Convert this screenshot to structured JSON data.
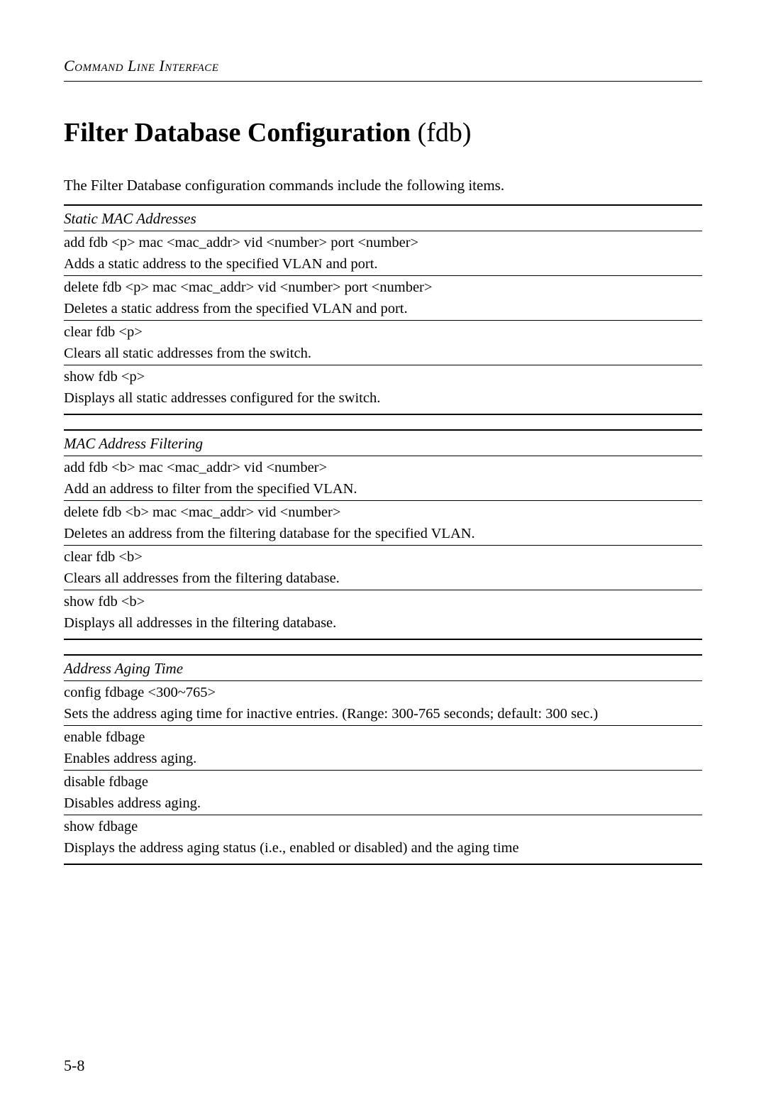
{
  "header": {
    "section_label": "Command Line Interface"
  },
  "title": {
    "bold_part": "Filter Database Configuration",
    "light_part": " (fdb)"
  },
  "intro": "The Filter Database configuration commands include the following items.",
  "sections": [
    {
      "label": "Static MAC Addresses",
      "rows": [
        {
          "cmd": "add fdb <p> mac <mac_addr> vid <number> port <number>",
          "desc": "Adds a static address to the specified VLAN and port."
        },
        {
          "cmd": "delete fdb <p> mac <mac_addr> vid <number> port <number>",
          "desc": "Deletes a static address from the specified VLAN and port."
        },
        {
          "cmd": "clear fdb <p>",
          "desc": "Clears all static addresses from the switch."
        },
        {
          "cmd": "show fdb <p>",
          "desc": "Displays all static addresses configured for the switch."
        }
      ]
    },
    {
      "label": "MAC Address Filtering",
      "rows": [
        {
          "cmd": "add fdb <b> mac <mac_addr> vid <number>",
          "desc": "Add an address to filter from the specified VLAN."
        },
        {
          "cmd": "delete fdb <b> mac <mac_addr> vid <number>",
          "desc": "Deletes an address from the filtering database for the specified VLAN."
        },
        {
          "cmd": "clear fdb <b>",
          "desc": "Clears all addresses from the filtering database."
        },
        {
          "cmd": "show fdb <b>",
          "desc": "Displays all addresses in the filtering database."
        }
      ]
    },
    {
      "label": "Address Aging Time",
      "rows": [
        {
          "cmd": "config fdbage <300~765>",
          "desc": "Sets the address aging time for inactive entries. (Range: 300-765 seconds; default: 300 sec.)"
        },
        {
          "cmd": "enable fdbage",
          "desc": "Enables address aging."
        },
        {
          "cmd": "disable fdbage",
          "desc": "Disables address aging."
        },
        {
          "cmd": "show fdbage",
          "desc": "Displays the address aging status (i.e., enabled or disabled) and the aging time"
        }
      ]
    }
  ],
  "page_number": "5-8"
}
